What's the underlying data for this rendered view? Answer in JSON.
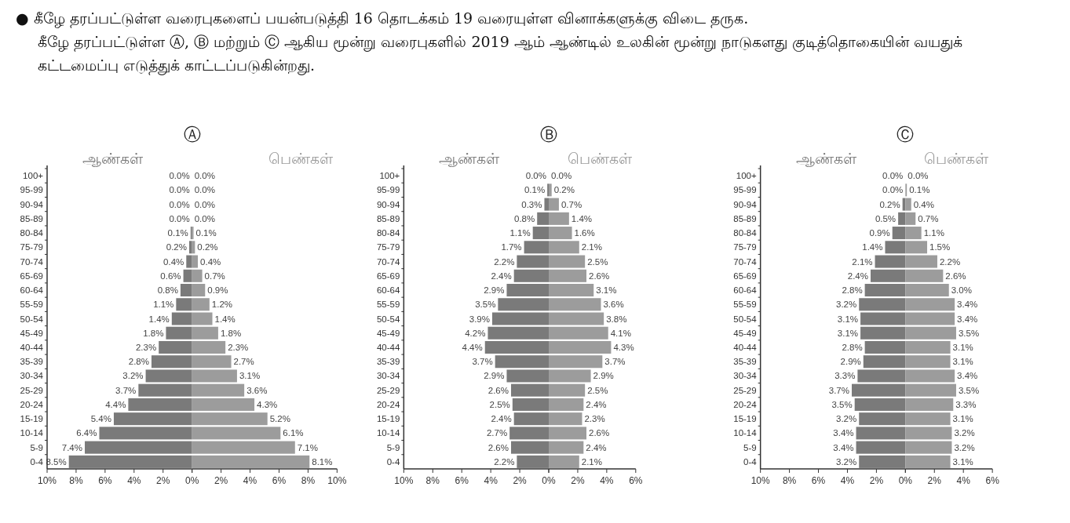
{
  "chart_data": [
    {
      "type": "bar",
      "orientation": "horizontal",
      "title": "Ⓐ",
      "annotations": [
        "● கீழே தரப்பட்டுள்ள வரைபுகளைப் பயன்படுத்தி 16 தொடக்கம் 19 வரையுள்ள வினாக்களுக்கு விடை தருக.",
        "கீழே தரப்பட்டுள்ள Ⓐ, Ⓑ மற்றும் Ⓒ ஆகிய மூன்று வரைபுகளில் 2019 ஆம் ஆண்டில் உலகின் மூன்று நாடுகளது குடித்தொகையின் வயதுக் கட்டமைப்பு எடுத்துக் காட்டப்படுகின்றது."
      ],
      "categories": [
        "100+",
        "95-99",
        "90-94",
        "85-89",
        "80-84",
        "75-79",
        "70-74",
        "65-69",
        "60-64",
        "55-59",
        "50-54",
        "45-49",
        "40-44",
        "35-39",
        "30-34",
        "25-29",
        "20-24",
        "15-19",
        "10-14",
        "5-9",
        "0-4"
      ],
      "series": [
        {
          "name": "ஆண்கள்",
          "color": "#7a7a7a",
          "values": [
            0.0,
            0.0,
            0.0,
            0.0,
            0.1,
            0.2,
            0.4,
            0.6,
            0.8,
            1.1,
            1.4,
            1.8,
            2.3,
            2.8,
            3.2,
            3.7,
            4.4,
            5.4,
            6.4,
            7.4,
            8.5
          ],
          "value_labels": [
            "0.0%",
            "0.0%",
            "0.0%",
            "0.0%",
            "0.1%",
            "0.2%",
            "0.4%",
            "0.6%",
            "0.8%",
            "1.1%",
            "1.4%",
            "1.8%",
            "2.3%",
            "2.8%",
            "3.2%",
            "3.7%",
            "4.4%",
            "5.4%",
            "6.4%",
            "7.4%",
            "8.5%"
          ]
        }
      ],
      "xlim": [
        10,
        0
      ],
      "xticks": [
        {
          "value": 10,
          "label": "10%"
        },
        {
          "value": 8,
          "label": "8%"
        },
        {
          "value": 6,
          "label": "6%"
        },
        {
          "value": 4,
          "label": "4%"
        },
        {
          "value": 2,
          "label": "2%"
        },
        {
          "value": 0,
          "label": "0%"
        }
      ]
    },
    {
      "type": "bar",
      "orientation": "horizontal",
      "tick_labels": "x",
      "categories": [
        "100+",
        "95-99",
        "90-94",
        "85-89",
        "80-84",
        "75-79",
        "70-74",
        "65-69",
        "60-64",
        "55-59",
        "50-54",
        "45-49",
        "40-44",
        "35-39",
        "30-34",
        "25-29",
        "20-24",
        "15-19",
        "10-14",
        "5-9",
        "0-4"
      ],
      "series": [
        {
          "name": "பெண்கள்",
          "color": "#9c9c9c",
          "values": [
            0.0,
            0.0,
            0.0,
            0.0,
            0.1,
            0.2,
            0.4,
            0.7,
            0.9,
            1.2,
            1.4,
            1.8,
            2.3,
            2.7,
            3.1,
            3.6,
            4.3,
            5.2,
            6.1,
            7.1,
            8.1
          ],
          "value_labels": [
            "0.0%",
            "0.0%",
            "0.0%",
            "0.0%",
            "0.1%",
            "0.2%",
            "0.4%",
            "0.7%",
            "0.9%",
            "1.2%",
            "1.4%",
            "1.8%",
            "2.3%",
            "2.7%",
            "3.1%",
            "3.6%",
            "4.3%",
            "5.2%",
            "6.1%",
            "7.1%",
            "8.1%"
          ]
        }
      ],
      "xlim": [
        0,
        10
      ],
      "xticks": [
        {
          "value": 0,
          "label": null
        },
        {
          "value": 2,
          "label": "2%"
        },
        {
          "value": 4,
          "label": "4%"
        },
        {
          "value": 6,
          "label": "6%"
        },
        {
          "value": 8,
          "label": "8%"
        },
        {
          "value": 10,
          "label": "10%"
        }
      ]
    },
    {
      "type": "bar",
      "orientation": "horizontal",
      "title": "Ⓑ",
      "categories": [
        "100+",
        "95-99",
        "90-94",
        "85-89",
        "80-84",
        "75-79",
        "70-74",
        "65-69",
        "60-64",
        "55-59",
        "50-54",
        "45-49",
        "40-44",
        "35-39",
        "30-34",
        "25-29",
        "20-24",
        "15-19",
        "10-14",
        "5-9",
        "0-4"
      ],
      "series": [
        {
          "name": "ஆண்கள்",
          "color": "#7a7a7a",
          "values": [
            0.0,
            0.1,
            0.3,
            0.8,
            1.1,
            1.7,
            2.2,
            2.4,
            2.9,
            3.5,
            3.9,
            4.2,
            4.4,
            3.7,
            2.9,
            2.6,
            2.5,
            2.4,
            2.7,
            2.6,
            2.2
          ],
          "value_labels": [
            "0.0%",
            "0.1%",
            "0.3%",
            "0.8%",
            "1.1%",
            "1.7%",
            "2.2%",
            "2.4%",
            "2.9%",
            "3.5%",
            "3.9%",
            "4.2%",
            "4.4%",
            "3.7%",
            "2.9%",
            "2.6%",
            "2.5%",
            "2.4%",
            "2.7%",
            "2.6%",
            "2.2%"
          ]
        }
      ],
      "xlim": [
        10,
        0
      ],
      "xticks": [
        {
          "value": 10,
          "label": "10%"
        },
        {
          "value": 8,
          "label": "8%"
        },
        {
          "value": 6,
          "label": "6%"
        },
        {
          "value": 4,
          "label": "4%"
        },
        {
          "value": 2,
          "label": "2%"
        },
        {
          "value": 0,
          "label": "0%"
        }
      ]
    },
    {
      "type": "bar",
      "orientation": "horizontal",
      "tick_labels": "x",
      "categories": [
        "100+",
        "95-99",
        "90-94",
        "85-89",
        "80-84",
        "75-79",
        "70-74",
        "65-69",
        "60-64",
        "55-59",
        "50-54",
        "45-49",
        "40-44",
        "35-39",
        "30-34",
        "25-29",
        "20-24",
        "15-19",
        "10-14",
        "5-9",
        "0-4"
      ],
      "series": [
        {
          "name": "பெண்கள்",
          "color": "#9c9c9c",
          "values": [
            0.0,
            0.2,
            0.7,
            1.4,
            1.6,
            2.1,
            2.5,
            2.6,
            3.1,
            3.6,
            3.8,
            4.1,
            4.3,
            3.7,
            2.9,
            2.5,
            2.4,
            2.3,
            2.6,
            2.4,
            2.1
          ],
          "value_labels": [
            "0.0%",
            "0.2%",
            "0.7%",
            "1.4%",
            "1.6%",
            "2.1%",
            "2.5%",
            "2.6%",
            "3.1%",
            "3.6%",
            "3.8%",
            "4.1%",
            "4.3%",
            "3.7%",
            "2.9%",
            "2.5%",
            "2.4%",
            "2.3%",
            "2.6%",
            "2.4%",
            "2.1%"
          ]
        }
      ],
      "xlim": [
        0,
        6
      ],
      "xticks": [
        {
          "value": 0,
          "label": null
        },
        {
          "value": 2,
          "label": "2%"
        },
        {
          "value": 4,
          "label": "4%"
        },
        {
          "value": 6,
          "label": "6%"
        }
      ]
    },
    {
      "type": "bar",
      "orientation": "horizontal",
      "title": "Ⓒ",
      "categories": [
        "100+",
        "95-99",
        "90-94",
        "85-89",
        "80-84",
        "75-79",
        "70-74",
        "65-69",
        "60-64",
        "55-59",
        "50-54",
        "45-49",
        "40-44",
        "35-39",
        "30-34",
        "25-29",
        "20-24",
        "15-19",
        "10-14",
        "5-9",
        "0-4"
      ],
      "series": [
        {
          "name": "ஆண்கள்",
          "color": "#7a7a7a",
          "values": [
            0.0,
            0.0,
            0.2,
            0.5,
            0.9,
            1.4,
            2.1,
            2.4,
            2.8,
            3.2,
            3.1,
            3.1,
            2.8,
            2.9,
            3.3,
            3.7,
            3.5,
            3.2,
            3.4,
            3.4,
            3.2
          ],
          "value_labels": [
            "0.0%",
            "0.0%",
            "0.2%",
            "0.5%",
            "0.9%",
            "1.4%",
            "2.1%",
            "2.4%",
            "2.8%",
            "3.2%",
            "3.1%",
            "3.1%",
            "2.8%",
            "2.9%",
            "3.3%",
            "3.7%",
            "3.5%",
            "3.2%",
            "3.4%",
            "3.4%",
            "3.2%"
          ]
        }
      ],
      "xlim": [
        10,
        0
      ],
      "xticks": [
        {
          "value": 10,
          "label": "10%"
        },
        {
          "value": 8,
          "label": "8%"
        },
        {
          "value": 6,
          "label": "6%"
        },
        {
          "value": 4,
          "label": "4%"
        },
        {
          "value": 2,
          "label": "2%"
        },
        {
          "value": 0,
          "label": "0%"
        }
      ]
    },
    {
      "type": "bar",
      "orientation": "horizontal",
      "tick_labels": "x",
      "categories": [
        "100+",
        "95-99",
        "90-94",
        "85-89",
        "80-84",
        "75-79",
        "70-74",
        "65-69",
        "60-64",
        "55-59",
        "50-54",
        "45-49",
        "40-44",
        "35-39",
        "30-34",
        "25-29",
        "20-24",
        "15-19",
        "10-14",
        "5-9",
        "0-4"
      ],
      "series": [
        {
          "name": "பெண்கள்",
          "color": "#9c9c9c",
          "values": [
            0.0,
            0.1,
            0.4,
            0.7,
            1.1,
            1.5,
            2.2,
            2.6,
            3.0,
            3.4,
            3.4,
            3.5,
            3.1,
            3.1,
            3.4,
            3.5,
            3.3,
            3.1,
            3.2,
            3.2,
            3.1
          ],
          "value_labels": [
            "0.0%",
            "0.1%",
            "0.4%",
            "0.7%",
            "1.1%",
            "1.5%",
            "2.2%",
            "2.6%",
            "3.0%",
            "3.4%",
            "3.4%",
            "3.5%",
            "3.1%",
            "3.1%",
            "3.4%",
            "3.5%",
            "3.3%",
            "3.1%",
            "3.2%",
            "3.2%",
            "3.1%"
          ]
        }
      ],
      "xlim": [
        0,
        6
      ],
      "xticks": [
        {
          "value": 0,
          "label": null
        },
        {
          "value": 2,
          "label": "2%"
        },
        {
          "value": 4,
          "label": "4%"
        },
        {
          "value": 6,
          "label": "6%"
        }
      ]
    }
  ]
}
